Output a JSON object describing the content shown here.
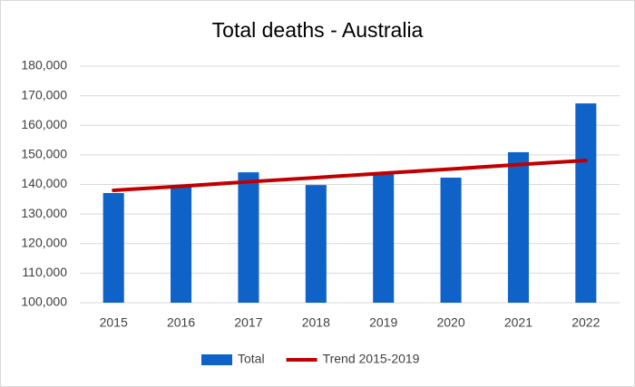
{
  "chart_data": {
    "type": "bar",
    "title": "Total deaths - Australia",
    "categories": [
      "2015",
      "2016",
      "2017",
      "2018",
      "2019",
      "2020",
      "2021",
      "2022"
    ],
    "series": [
      {
        "name": "Total",
        "color": "#0f62c8",
        "values": [
          137100,
          139200,
          144100,
          139800,
          143900,
          142300,
          150900,
          167400
        ]
      },
      {
        "name": "Trend 2015-2019",
        "color": "#c00000",
        "type": "line",
        "values": [
          138000,
          139400,
          140900,
          142300,
          143800,
          145200,
          146700,
          148100
        ]
      }
    ],
    "ylim": [
      100000,
      180000
    ],
    "yticks": [
      {
        "value": 100000,
        "label": "100,000"
      },
      {
        "value": 110000,
        "label": "110,000"
      },
      {
        "value": 120000,
        "label": "120,000"
      },
      {
        "value": 130000,
        "label": "130,000"
      },
      {
        "value": 140000,
        "label": "140,000"
      },
      {
        "value": 150000,
        "label": "150,000"
      },
      {
        "value": 160000,
        "label": "160,000"
      },
      {
        "value": 170000,
        "label": "170,000"
      },
      {
        "value": 180000,
        "label": "180,000"
      }
    ],
    "grid": true,
    "legend": "bottom"
  }
}
